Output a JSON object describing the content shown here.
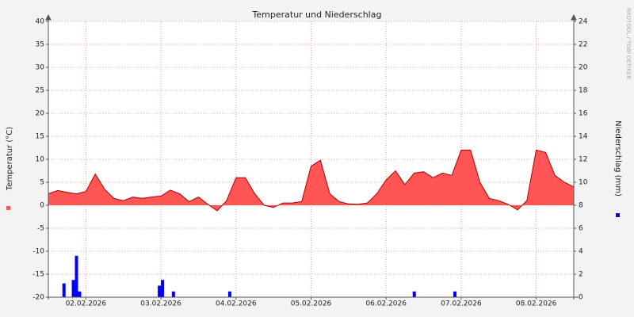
{
  "chart_data": {
    "type": "area",
    "title": "Temperatur und Niederschlag",
    "y_label": "Temperatur (°C)",
    "y2_label": "Niederschlag (mm)",
    "watermark": "RRDTOOL / TOBI OETIKER",
    "x": [
      0,
      3,
      6,
      9,
      12,
      15,
      18,
      21,
      24,
      27,
      30,
      33,
      36,
      39,
      42,
      45,
      48,
      51,
      54,
      57,
      60,
      63,
      66,
      69,
      72,
      75,
      78,
      81,
      84,
      87,
      90,
      93,
      96,
      99,
      102,
      105,
      108,
      111,
      114,
      117,
      120,
      123,
      126,
      129,
      132,
      135,
      138,
      141,
      144,
      147,
      150,
      153,
      156,
      159,
      162,
      165,
      168
    ],
    "xlim": [
      0,
      168
    ],
    "xticks": [
      {
        "value": 12,
        "label": "02.02.2026"
      },
      {
        "value": 36,
        "label": "03.02.2026"
      },
      {
        "value": 60,
        "label": "04.02.2026"
      },
      {
        "value": 84,
        "label": "05.02.2026"
      },
      {
        "value": 108,
        "label": "06.02.2026"
      },
      {
        "value": 132,
        "label": "07.02.2026"
      },
      {
        "value": 156,
        "label": "08.02.2026"
      }
    ],
    "ylim": [
      -20,
      40
    ],
    "yticks": [
      -20,
      -15,
      -10,
      -5,
      0,
      5,
      10,
      15,
      20,
      25,
      30,
      35,
      40
    ],
    "y2lim": [
      0,
      24
    ],
    "y2ticks": [
      0,
      2,
      4,
      6,
      8,
      10,
      12,
      14,
      16,
      18,
      20,
      22,
      24
    ],
    "grid": true,
    "series": [
      {
        "color": "#ff5555",
        "values": [
          2.5,
          3.2,
          2.8,
          2.5,
          3.0,
          6.8,
          3.5,
          1.5,
          1.0,
          1.8,
          1.5,
          1.8,
          2.0,
          3.3,
          2.5,
          0.8,
          1.8,
          0.2,
          -1.2,
          1.0,
          6.0,
          6.0,
          2.5,
          0.0,
          -0.5,
          0.5,
          0.5,
          0.8,
          8.5,
          9.8,
          2.5,
          0.8,
          0.3,
          0.2,
          0.5,
          2.5,
          5.5,
          7.5,
          4.5,
          7.0,
          7.3,
          6.0,
          7.0,
          6.5,
          12.0,
          12.0,
          5.0,
          1.5,
          1.0,
          0.2,
          -1.0,
          1.0,
          12.0,
          11.5,
          6.5,
          5.0,
          4.0
        ]
      },
      {
        "color": "#0000ff",
        "axis": "y2",
        "type": "bar",
        "x": [
          5,
          8,
          9,
          10,
          35.5,
          36.5,
          40,
          58,
          117,
          130
        ],
        "values": [
          1.2,
          1.5,
          3.6,
          0.5,
          1.0,
          1.5,
          0.5,
          0.5,
          0.5,
          0.5
        ]
      }
    ]
  }
}
